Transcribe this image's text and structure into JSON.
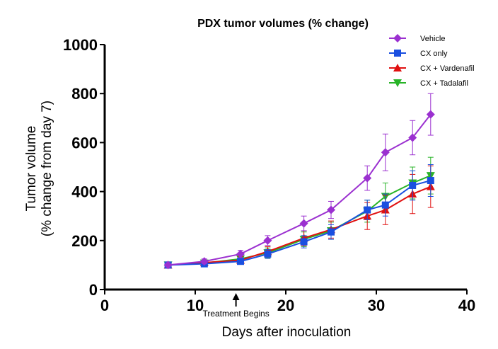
{
  "chart_data": {
    "type": "line",
    "title": "PDX tumor volumes  (% change)",
    "xlabel": "Days after inoculation",
    "ylabel_line1": "Tumor  volume",
    "ylabel_line2": "(% change from day 7)",
    "xlim": [
      0,
      40
    ],
    "ylim": [
      0,
      1000
    ],
    "x_ticks": [
      "0",
      "10",
      "20",
      "30",
      "40"
    ],
    "y_ticks": [
      "0",
      "200",
      "400",
      "600",
      "800",
      "1000"
    ],
    "grid": false,
    "legend_position": "top-right",
    "annotation": {
      "text": "Treatment  Begins",
      "x": 14.5
    },
    "x": [
      7,
      11,
      15,
      18,
      22,
      25,
      29,
      31,
      34,
      36
    ],
    "series": [
      {
        "name": "Vehicle",
        "color": "#9b30d0",
        "marker": "diamond",
        "values": [
          100,
          115,
          145,
          200,
          270,
          325,
          455,
          560,
          620,
          715
        ],
        "errors": [
          5,
          10,
          15,
          20,
          30,
          35,
          50,
          75,
          70,
          85
        ]
      },
      {
        "name": "CX only",
        "color": "#1a4fe0",
        "marker": "square",
        "values": [
          100,
          105,
          115,
          145,
          195,
          235,
          325,
          345,
          425,
          445
        ],
        "errors": [
          5,
          8,
          12,
          18,
          25,
          30,
          40,
          45,
          60,
          65
        ]
      },
      {
        "name": "CX + Vardenafil",
        "color": "#e01010",
        "marker": "triangle-up",
        "values": [
          100,
          110,
          120,
          155,
          210,
          245,
          300,
          325,
          390,
          420
        ],
        "errors": [
          5,
          10,
          15,
          20,
          30,
          35,
          55,
          60,
          80,
          85
        ]
      },
      {
        "name": "CX + Tadalafil",
        "color": "#28b428",
        "marker": "triangle-down",
        "values": [
          100,
          108,
          125,
          150,
          205,
          240,
          320,
          380,
          435,
          465
        ],
        "errors": [
          5,
          10,
          15,
          20,
          30,
          35,
          45,
          55,
          65,
          75
        ]
      }
    ]
  }
}
